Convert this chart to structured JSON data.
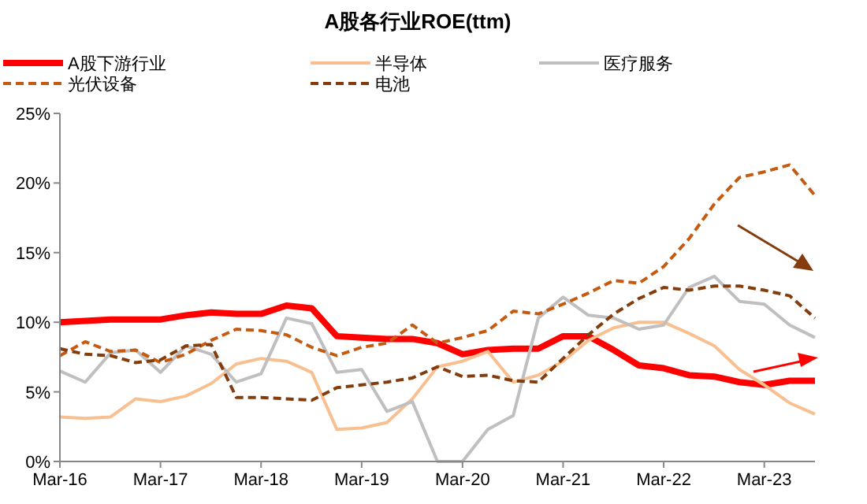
{
  "chart_data": {
    "type": "line",
    "title": "A股各行业ROE(ttm)",
    "x": [
      "2016-03",
      "2016-06",
      "2016-09",
      "2016-12",
      "2017-03",
      "2017-06",
      "2017-09",
      "2017-12",
      "2018-03",
      "2018-06",
      "2018-09",
      "2018-12",
      "2019-03",
      "2019-06",
      "2019-09",
      "2019-12",
      "2020-03",
      "2020-06",
      "2020-09",
      "2020-12",
      "2021-03",
      "2021-06",
      "2021-09",
      "2021-12",
      "2022-03",
      "2022-06",
      "2022-09",
      "2022-12",
      "2023-03",
      "2023-06",
      "2023-09"
    ],
    "xlim": [
      "2016-03",
      "2023-09"
    ],
    "xticks": [
      {
        "value": "2016-03",
        "label": "Mar-16"
      },
      {
        "value": "2017-03",
        "label": "Mar-17"
      },
      {
        "value": "2018-03",
        "label": "Mar-18"
      },
      {
        "value": "2019-03",
        "label": "Mar-19"
      },
      {
        "value": "2020-03",
        "label": "Mar-20"
      },
      {
        "value": "2021-03",
        "label": "Mar-21"
      },
      {
        "value": "2022-03",
        "label": "Mar-22"
      },
      {
        "value": "2023-03",
        "label": "Mar-23"
      }
    ],
    "ylim": [
      0,
      25
    ],
    "yticks": [
      {
        "value": 0,
        "label": "0%"
      },
      {
        "value": 5,
        "label": "5%"
      },
      {
        "value": 10,
        "label": "10%"
      },
      {
        "value": 15,
        "label": "15%"
      },
      {
        "value": 20,
        "label": "20%"
      },
      {
        "value": 25,
        "label": "25%"
      }
    ],
    "legend": "top",
    "grid": false,
    "series": [
      {
        "name": "A股下游行业",
        "color": "#ff0000",
        "line_style": "solid",
        "values": [
          10.0,
          10.1,
          10.2,
          10.2,
          10.2,
          10.5,
          10.7,
          10.6,
          10.6,
          11.2,
          11.0,
          9.0,
          8.9,
          8.8,
          8.8,
          8.5,
          7.7,
          8.0,
          8.1,
          8.1,
          9.0,
          9.0,
          8.0,
          6.9,
          6.7,
          6.2,
          6.1,
          5.7,
          5.5,
          5.8,
          5.8
        ]
      },
      {
        "name": "半导体",
        "color": "#f8c090",
        "line_style": "solid",
        "values": [
          3.2,
          3.1,
          3.2,
          4.5,
          4.3,
          4.7,
          5.6,
          7.0,
          7.4,
          7.2,
          6.4,
          2.3,
          2.4,
          2.8,
          4.5,
          6.8,
          7.2,
          7.9,
          5.7,
          6.2,
          7.2,
          8.7,
          9.6,
          10.0,
          10.0,
          9.2,
          8.3,
          6.6,
          5.5,
          4.2,
          3.4
        ]
      },
      {
        "name": "医疗服务",
        "color": "#bfbfbf",
        "line_style": "solid",
        "values": [
          6.5,
          5.7,
          7.8,
          8.0,
          6.4,
          8.3,
          7.7,
          5.7,
          6.3,
          10.3,
          9.9,
          6.4,
          6.6,
          3.6,
          4.3,
          0.0,
          0.0,
          2.3,
          3.3,
          10.3,
          11.8,
          10.5,
          10.3,
          9.5,
          9.8,
          12.5,
          13.3,
          11.5,
          11.3,
          9.8,
          8.9
        ]
      },
      {
        "name": "光伏设备",
        "color": "#c55a11",
        "line_style": "dashed",
        "values": [
          7.6,
          8.6,
          7.9,
          8.0,
          7.1,
          7.7,
          8.7,
          9.5,
          9.4,
          9.1,
          8.2,
          7.6,
          8.2,
          8.5,
          9.8,
          8.5,
          8.9,
          9.4,
          10.8,
          10.6,
          11.3,
          12.1,
          13.0,
          12.8,
          14.0,
          16.0,
          18.5,
          20.4,
          20.8,
          21.3,
          19.1
        ]
      },
      {
        "name": "电池",
        "color": "#843c0c",
        "line_style": "dashed",
        "values": [
          8.1,
          7.7,
          7.6,
          7.1,
          7.3,
          8.3,
          8.4,
          4.6,
          4.6,
          4.5,
          4.4,
          5.3,
          5.5,
          5.7,
          6.0,
          6.8,
          6.1,
          6.2,
          5.8,
          5.7,
          7.4,
          9.1,
          10.6,
          11.7,
          12.5,
          12.3,
          12.6,
          12.6,
          12.3,
          11.9,
          10.3
        ]
      }
    ]
  }
}
